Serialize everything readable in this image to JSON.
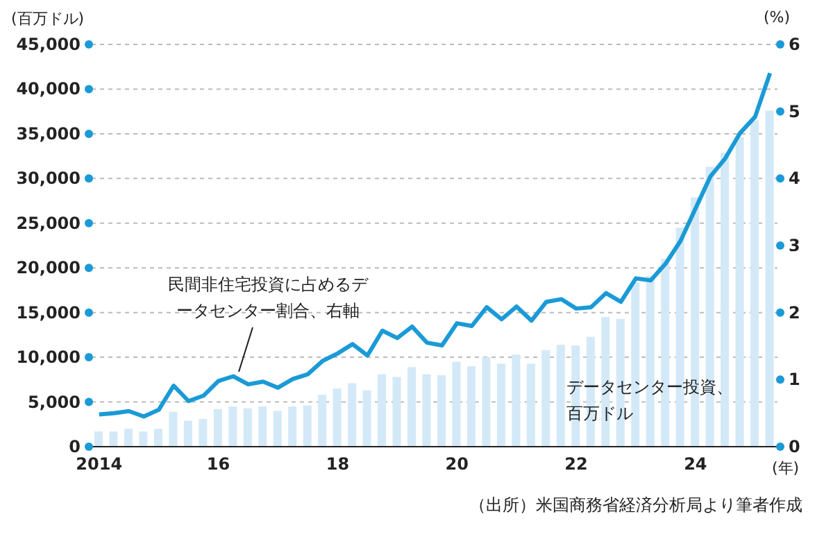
{
  "chart_data": {
    "type": "bar",
    "ylabel": "(百万ドル)",
    "y2label": "(%)",
    "xlabel": "(年)",
    "categories": [
      "2014",
      null,
      null,
      null,
      null,
      null,
      null,
      null,
      "16",
      null,
      null,
      null,
      null,
      null,
      null,
      null,
      "18",
      null,
      null,
      null,
      null,
      null,
      null,
      null,
      "20",
      null,
      null,
      null,
      null,
      null,
      null,
      null,
      "22",
      null,
      null,
      null,
      null,
      null,
      null,
      null,
      "24",
      null,
      null,
      null,
      null,
      null
    ],
    "series": [
      {
        "color": "#d3e9f8",
        "values": [
          1700,
          1700,
          2000,
          1700,
          2000,
          3900,
          2900,
          3100,
          4200,
          4500,
          4300,
          4500,
          4000,
          4500,
          4600,
          5800,
          6500,
          7100,
          6300,
          8100,
          7800,
          8900,
          8100,
          8000,
          9500,
          9000,
          10000,
          9300,
          10300,
          9300,
          10800,
          11400,
          11300,
          12300,
          14500,
          14300,
          18400,
          19100,
          21000,
          24500,
          27900,
          31300,
          32900,
          34600,
          36500,
          37600
        ]
      },
      {
        "type": "line",
        "axis": "y2",
        "color": "#1a9ad6",
        "values": [
          0.48,
          0.5,
          0.53,
          0.45,
          0.55,
          0.91,
          0.68,
          0.76,
          0.98,
          1.05,
          0.93,
          0.97,
          0.88,
          1.01,
          1.08,
          1.28,
          1.39,
          1.53,
          1.36,
          1.73,
          1.62,
          1.79,
          1.55,
          1.51,
          1.84,
          1.8,
          2.08,
          1.9,
          2.09,
          1.88,
          2.16,
          2.2,
          2.06,
          2.08,
          2.29,
          2.16,
          2.51,
          2.48,
          2.73,
          3.07,
          3.55,
          4.03,
          4.3,
          4.68,
          4.92,
          5.57
        ]
      }
    ],
    "ylim": [
      0,
      45000
    ],
    "yticks": [
      0,
      {
        "value": 5000,
        "label": "5,000"
      },
      {
        "value": 10000,
        "label": "10,000"
      },
      {
        "value": 15000,
        "label": "15,000"
      },
      {
        "value": 20000,
        "label": "20,000"
      },
      {
        "value": 25000,
        "label": "25,000"
      },
      {
        "value": 30000,
        "label": "30,000"
      },
      {
        "value": 35000,
        "label": "35,000"
      },
      {
        "value": 40000,
        "label": "40,000"
      },
      {
        "value": 45000,
        "label": "45,000"
      }
    ],
    "y2lim": [
      0,
      6
    ],
    "y2ticks": [
      0,
      1,
      2,
      3,
      4,
      5,
      6
    ],
    "grid": "y",
    "legend": false,
    "marker": "none",
    "annotations": [
      "民間非住宅投資に占めるデータセンター割合、右軸",
      "データセンター投資、百万ドル",
      "（出所）米国商務省経済分析局より筆者作成"
    ]
  }
}
